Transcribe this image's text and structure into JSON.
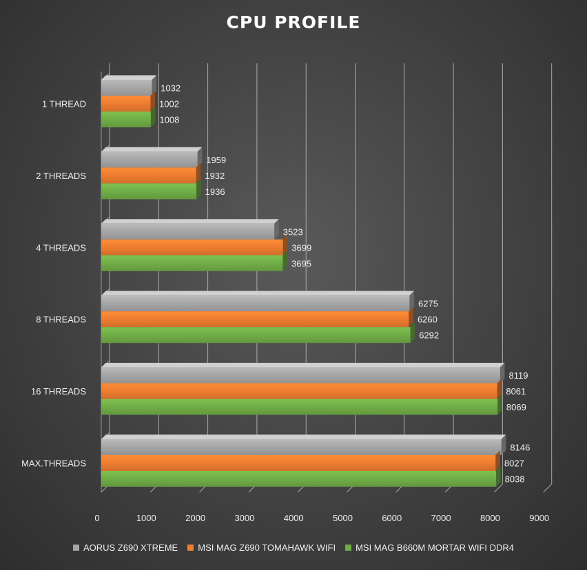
{
  "chart_data": {
    "type": "bar",
    "orientation": "horizontal",
    "title": "CPU PROFILE",
    "xlabel": "",
    "ylabel": "",
    "xlim": [
      0,
      9000
    ],
    "x_ticks": [
      "0",
      "1000",
      "2000",
      "3000",
      "4000",
      "5000",
      "6000",
      "7000",
      "8000",
      "9000"
    ],
    "grid": true,
    "legend_position": "bottom",
    "categories": [
      "1 THREAD",
      "2 THREADS",
      "4 THREADS",
      "8 THREADS",
      "16 THREADS",
      "MAX.THREADS"
    ],
    "series": [
      {
        "name": "AORUS Z690 XTREME",
        "color": "#a6a6a6",
        "values": [
          1032,
          1959,
          3523,
          6275,
          8119,
          8146
        ]
      },
      {
        "name": "MSI MAG Z690 TOMAHAWK WIFI",
        "color": "#ed7d31",
        "values": [
          1002,
          1932,
          3699,
          6260,
          8061,
          8027
        ]
      },
      {
        "name": "MSI MAG B660M MORTAR WIFI DDR4",
        "color": "#70ad47",
        "values": [
          1008,
          1936,
          3695,
          6292,
          8069,
          8038
        ]
      }
    ]
  }
}
